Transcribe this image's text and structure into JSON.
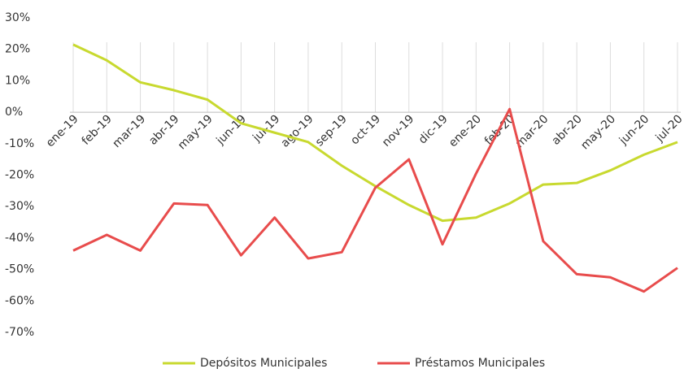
{
  "chart_data": {
    "type": "line",
    "categories": [
      "ene-19",
      "feb-19",
      "mar-19",
      "abr-19",
      "may-19",
      "jun-19",
      "jul-19",
      "ago-19",
      "sep-19",
      "oct-19",
      "nov-19",
      "dic-19",
      "ene-20",
      "feb-20",
      "mar-20",
      "abr-20",
      "may-20",
      "jun-20",
      "jul-20"
    ],
    "series": [
      {
        "name": "Depósitos Municipales",
        "color": "#c8d92f",
        "values": [
          21.5,
          16.5,
          9.5,
          7,
          4,
          -3.5,
          -6.5,
          -9.5,
          -17,
          -23.5,
          -29.5,
          -34.5,
          -33.5,
          -29,
          -23,
          -22.5,
          -18.5,
          -13.5,
          -9.5
        ]
      },
      {
        "name": "Préstamos Municipales",
        "color": "#e84c4c",
        "values": [
          -44,
          -39,
          -44,
          -29,
          -29.5,
          -45.5,
          -33.5,
          -46.5,
          -44.5,
          -24,
          -15,
          -42,
          -19.5,
          1,
          -41,
          -51.5,
          -52.5,
          -57,
          -49.5
        ]
      }
    ],
    "ylim": [
      -70,
      30
    ],
    "yticks": [
      {
        "value": -70,
        "label": "-70%"
      },
      {
        "value": -60,
        "label": "-60%"
      },
      {
        "value": -50,
        "label": "-50%"
      },
      {
        "value": -40,
        "label": "-40%"
      },
      {
        "value": -30,
        "label": "-30%"
      },
      {
        "value": -20,
        "label": "-20%"
      },
      {
        "value": -10,
        "label": "-10%"
      },
      {
        "value": 0,
        "label": "0%"
      },
      {
        "value": 10,
        "label": "10%"
      },
      {
        "value": 20,
        "label": "20%"
      },
      {
        "value": 30,
        "label": "30%"
      }
    ],
    "legend": "bottom"
  }
}
